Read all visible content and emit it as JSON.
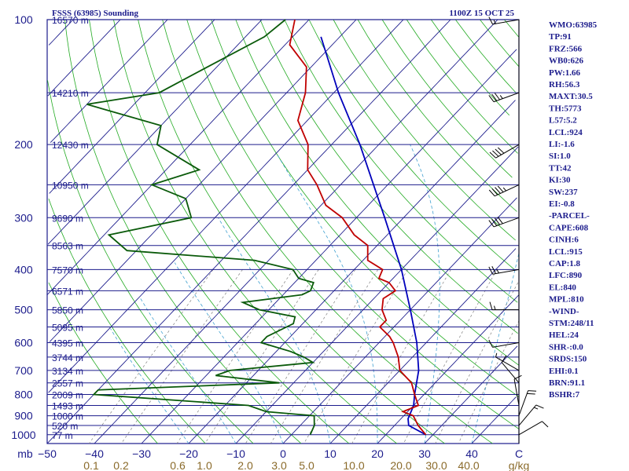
{
  "header": {
    "station_title": "FSSS (63985) Sounding",
    "valid_time": "1100Z 15 OCT 25"
  },
  "indices": [
    "WMO:63985",
    "TP:91",
    "FRZ:566",
    "WB0:626",
    "PW:1.66",
    "RH:56.3",
    "MAXT:30.5",
    "TH:5773",
    "L57:5.2",
    "LCL:924",
    "LI:-1.6",
    "SI:1.0",
    "TT:42",
    "KI:30",
    "SW:237",
    "EI:-0.8",
    "-PARCEL-",
    "CAPE:608",
    "CINH:6",
    "LCL:915",
    "CAP:1.8",
    "LFC:890",
    "EL:840",
    "MPL:810",
    "-WIND-",
    "STM:248/11",
    "HEL:24",
    "SHR-:0.0",
    "SRDS:150",
    "EHI:0.1",
    "BRN:91.1",
    "BSHR:7"
  ],
  "colors": {
    "isobar": "#1c1c8c",
    "isotherm": "#1c1c8c",
    "dry_adiabat": "#22aa22",
    "moist_adiabat": "#3fa0d0",
    "mixing_ratio": "#808080",
    "temperature": "#c00000",
    "dewpoint": "#0a5a0a",
    "parcel": "#0000bb",
    "axis_text": "#1c1c8c",
    "mixing_text": "#8a6a2a"
  },
  "chart_data": {
    "type": "skew-t",
    "pressure_labels": [
      "100",
      "200",
      "300",
      "400",
      "500",
      "600",
      "700",
      "800",
      "900",
      "1000"
    ],
    "x_unit": "mb",
    "temperature_ticks": [
      -50,
      -40,
      -30,
      -20,
      -10,
      0,
      10,
      20,
      30,
      40
    ],
    "temperature_tick_labels": [
      "−50",
      "−40",
      "−30",
      "−20",
      "−10",
      "0",
      "10",
      "20",
      "30",
      "40"
    ],
    "mixing_ratio_labels": [
      "0.1",
      "0.2",
      "0.6",
      "1.0",
      "2.0",
      "3.0",
      "5.0",
      "10.0",
      "20.0",
      "30.0",
      "40.0"
    ],
    "mixing_ratio_unit": "g/kg",
    "height_levels": [
      {
        "p": 100,
        "label": "16570 m"
      },
      {
        "p": 150,
        "label": "14210 m"
      },
      {
        "p": 200,
        "label": "12430 m"
      },
      {
        "p": 250,
        "label": "10950 m"
      },
      {
        "p": 300,
        "label": "9690 m"
      },
      {
        "p": 350,
        "label": "8563 m"
      },
      {
        "p": 400,
        "label": "7570 m"
      },
      {
        "p": 450,
        "label": "6571 m"
      },
      {
        "p": 500,
        "label": "5850 m"
      },
      {
        "p": 550,
        "label": "5095 m"
      },
      {
        "p": 600,
        "label": "4395 m"
      },
      {
        "p": 650,
        "label": "3744 m"
      },
      {
        "p": 700,
        "label": "3134 m"
      },
      {
        "p": 750,
        "label": "2557 m"
      },
      {
        "p": 800,
        "label": "2009 m"
      },
      {
        "p": 850,
        "label": "1493 m"
      },
      {
        "p": 900,
        "label": "1000 m"
      },
      {
        "p": 950,
        "label": "520 m"
      },
      {
        "p": 1000,
        "label": "77 m"
      }
    ],
    "temperature_profile": [
      [
        100,
        -83
      ],
      [
        115,
        -79
      ],
      [
        130,
        -71
      ],
      [
        150,
        -66
      ],
      [
        175,
        -62
      ],
      [
        200,
        -55
      ],
      [
        230,
        -50
      ],
      [
        250,
        -45
      ],
      [
        280,
        -39
      ],
      [
        300,
        -33
      ],
      [
        330,
        -27
      ],
      [
        350,
        -22
      ],
      [
        380,
        -19
      ],
      [
        400,
        -14
      ],
      [
        420,
        -13
      ],
      [
        430,
        -10
      ],
      [
        450,
        -7
      ],
      [
        470,
        -8
      ],
      [
        500,
        -6
      ],
      [
        530,
        -3
      ],
      [
        550,
        -3
      ],
      [
        580,
        1
      ],
      [
        600,
        3
      ],
      [
        650,
        7
      ],
      [
        700,
        10
      ],
      [
        750,
        15
      ],
      [
        800,
        18
      ],
      [
        850,
        21
      ],
      [
        880,
        19
      ],
      [
        900,
        22
      ],
      [
        950,
        25
      ],
      [
        1000,
        28.5
      ]
    ],
    "dewpoint_profile": [
      [
        100,
        -85
      ],
      [
        110,
        -86
      ],
      [
        130,
        -92
      ],
      [
        150,
        -97
      ],
      [
        160,
        -110
      ],
      [
        180,
        -90
      ],
      [
        200,
        -87
      ],
      [
        230,
        -73
      ],
      [
        250,
        -80
      ],
      [
        270,
        -70
      ],
      [
        300,
        -65
      ],
      [
        330,
        -79
      ],
      [
        360,
        -72
      ],
      [
        380,
        -43
      ],
      [
        400,
        -33
      ],
      [
        420,
        -30
      ],
      [
        430,
        -26
      ],
      [
        450,
        -25
      ],
      [
        460,
        -26
      ],
      [
        480,
        -37
      ],
      [
        500,
        -32
      ],
      [
        520,
        -23
      ],
      [
        540,
        -22
      ],
      [
        580,
        -25
      ],
      [
        600,
        -25
      ],
      [
        630,
        -17
      ],
      [
        650,
        -13
      ],
      [
        670,
        -10
      ],
      [
        700,
        -26
      ],
      [
        720,
        -28
      ],
      [
        750,
        -13
      ],
      [
        780,
        -50
      ],
      [
        800,
        -50
      ],
      [
        850,
        -15
      ],
      [
        880,
        -10
      ],
      [
        900,
        1
      ],
      [
        950,
        3
      ],
      [
        1000,
        4
      ]
    ],
    "parcel_profile": [
      [
        1000,
        28.5
      ],
      [
        950,
        23
      ],
      [
        915,
        21.5
      ],
      [
        850,
        20
      ],
      [
        800,
        18
      ],
      [
        700,
        14
      ],
      [
        600,
        8
      ],
      [
        500,
        0
      ],
      [
        400,
        -10
      ],
      [
        300,
        -24
      ],
      [
        250,
        -33
      ],
      [
        200,
        -44
      ],
      [
        150,
        -59
      ],
      [
        110,
        -74
      ]
    ],
    "wind_barbs": [
      {
        "p": 1000,
        "dir": 60,
        "spd": 10
      },
      {
        "p": 950,
        "dir": 40,
        "spd": 15
      },
      {
        "p": 900,
        "dir": 20,
        "spd": 20
      },
      {
        "p": 850,
        "dir": 350,
        "spd": 10
      },
      {
        "p": 750,
        "dir": 320,
        "spd": 10
      },
      {
        "p": 700,
        "dir": 300,
        "spd": 5
      },
      {
        "p": 600,
        "dir": 260,
        "spd": 10
      },
      {
        "p": 500,
        "dir": 270,
        "spd": 15
      },
      {
        "p": 400,
        "dir": 260,
        "spd": 25
      },
      {
        "p": 300,
        "dir": 250,
        "spd": 40
      },
      {
        "p": 250,
        "dir": 245,
        "spd": 45
      },
      {
        "p": 200,
        "dir": 240,
        "spd": 40
      },
      {
        "p": 150,
        "dir": 250,
        "spd": 35
      },
      {
        "p": 100,
        "dir": 260,
        "spd": 15
      }
    ]
  }
}
